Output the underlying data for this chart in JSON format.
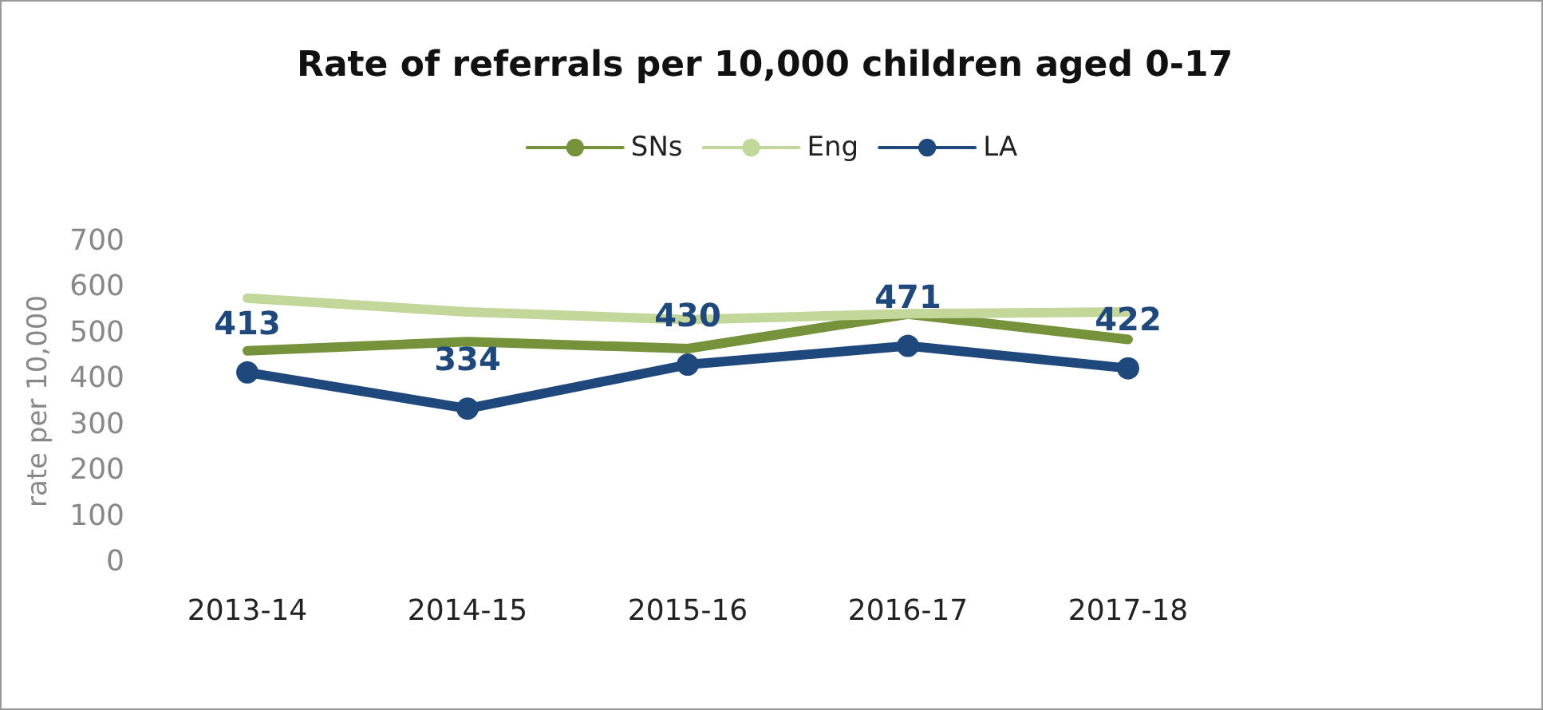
{
  "chart_data": {
    "type": "line",
    "title": "Rate of referrals per 10,000 children aged 0-17",
    "ylabel": "rate per 10,000",
    "categories": [
      "2013-14",
      "2014-15",
      "2015-16",
      "2016-17",
      "2017-18"
    ],
    "series": [
      {
        "name": "SNs",
        "color": "#76933c",
        "values": [
          460,
          480,
          465,
          540,
          485
        ],
        "marker": "none"
      },
      {
        "name": "Eng",
        "color": "#c4d79b",
        "values": [
          575,
          545,
          528,
          541,
          545
        ],
        "marker": "none"
      },
      {
        "name": "LA",
        "color": "#1f497d",
        "values": [
          413,
          334,
          430,
          471,
          422
        ],
        "marker": "circle",
        "value_labels": [
          "413",
          "334",
          "430",
          "471",
          "422"
        ]
      }
    ],
    "ylim": [
      0,
      700
    ],
    "yticks": [
      0,
      100,
      200,
      300,
      400,
      500,
      600,
      700
    ],
    "grid": false,
    "legend": "top",
    "line_style": "solid"
  }
}
